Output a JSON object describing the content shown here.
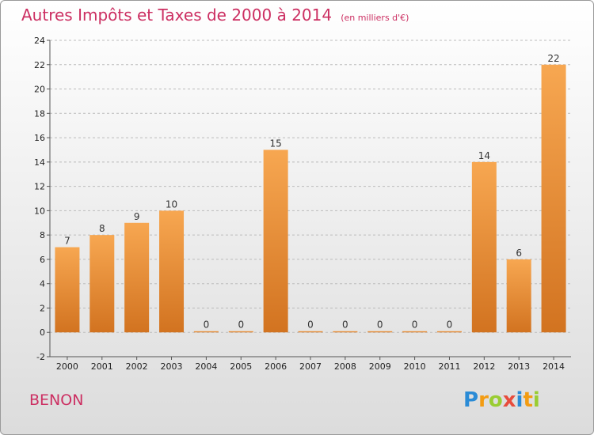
{
  "title": "Autres Impôts et Taxes de 2000 à 2014",
  "subtitle": "(en milliers d'€)",
  "commune": "BENON",
  "logo": {
    "text": "Proxiti",
    "letters": [
      {
        "ch": "P",
        "color": "#2a8bd6"
      },
      {
        "ch": "r",
        "color": "#f39c12"
      },
      {
        "ch": "o",
        "color": "#9acd32"
      },
      {
        "ch": "x",
        "color": "#e74c3c"
      },
      {
        "ch": "i",
        "color": "#2a8bd6"
      },
      {
        "ch": "t",
        "color": "#f39c12"
      },
      {
        "ch": "i",
        "color": "#9acd32"
      }
    ]
  },
  "colors": {
    "bar_top": "#f7a751",
    "bar_bottom": "#d27320",
    "title": "#cc2f62",
    "grid": "#bbbbbb"
  },
  "chart_data": {
    "type": "bar",
    "title": "Autres Impôts et Taxes de 2000 à 2014",
    "subtitle": "(en milliers d'€)",
    "categories": [
      "2000",
      "2001",
      "2002",
      "2003",
      "2004",
      "2005",
      "2006",
      "2007",
      "2008",
      "2009",
      "2010",
      "2011",
      "2012",
      "2013",
      "2014"
    ],
    "values": [
      7,
      8,
      9,
      10,
      0,
      0,
      15,
      0,
      0,
      0,
      0,
      0,
      14,
      6,
      22
    ],
    "value_labels": [
      "7",
      "8",
      "9",
      "10",
      "0",
      "0",
      "15",
      "0",
      "0",
      "0",
      "0",
      "0",
      "14",
      "6",
      "22"
    ],
    "ylim": [
      -2,
      24
    ],
    "yticks": [
      -2,
      0,
      2,
      4,
      6,
      8,
      10,
      12,
      14,
      16,
      18,
      20,
      22,
      24
    ],
    "ytick_labels": [
      "-2",
      "0",
      "2",
      "4",
      "6",
      "8",
      "10",
      "12",
      "14",
      "16",
      "18",
      "20",
      "22",
      "24"
    ],
    "grid": "horizontal dashed",
    "xlabel": "",
    "ylabel": ""
  }
}
